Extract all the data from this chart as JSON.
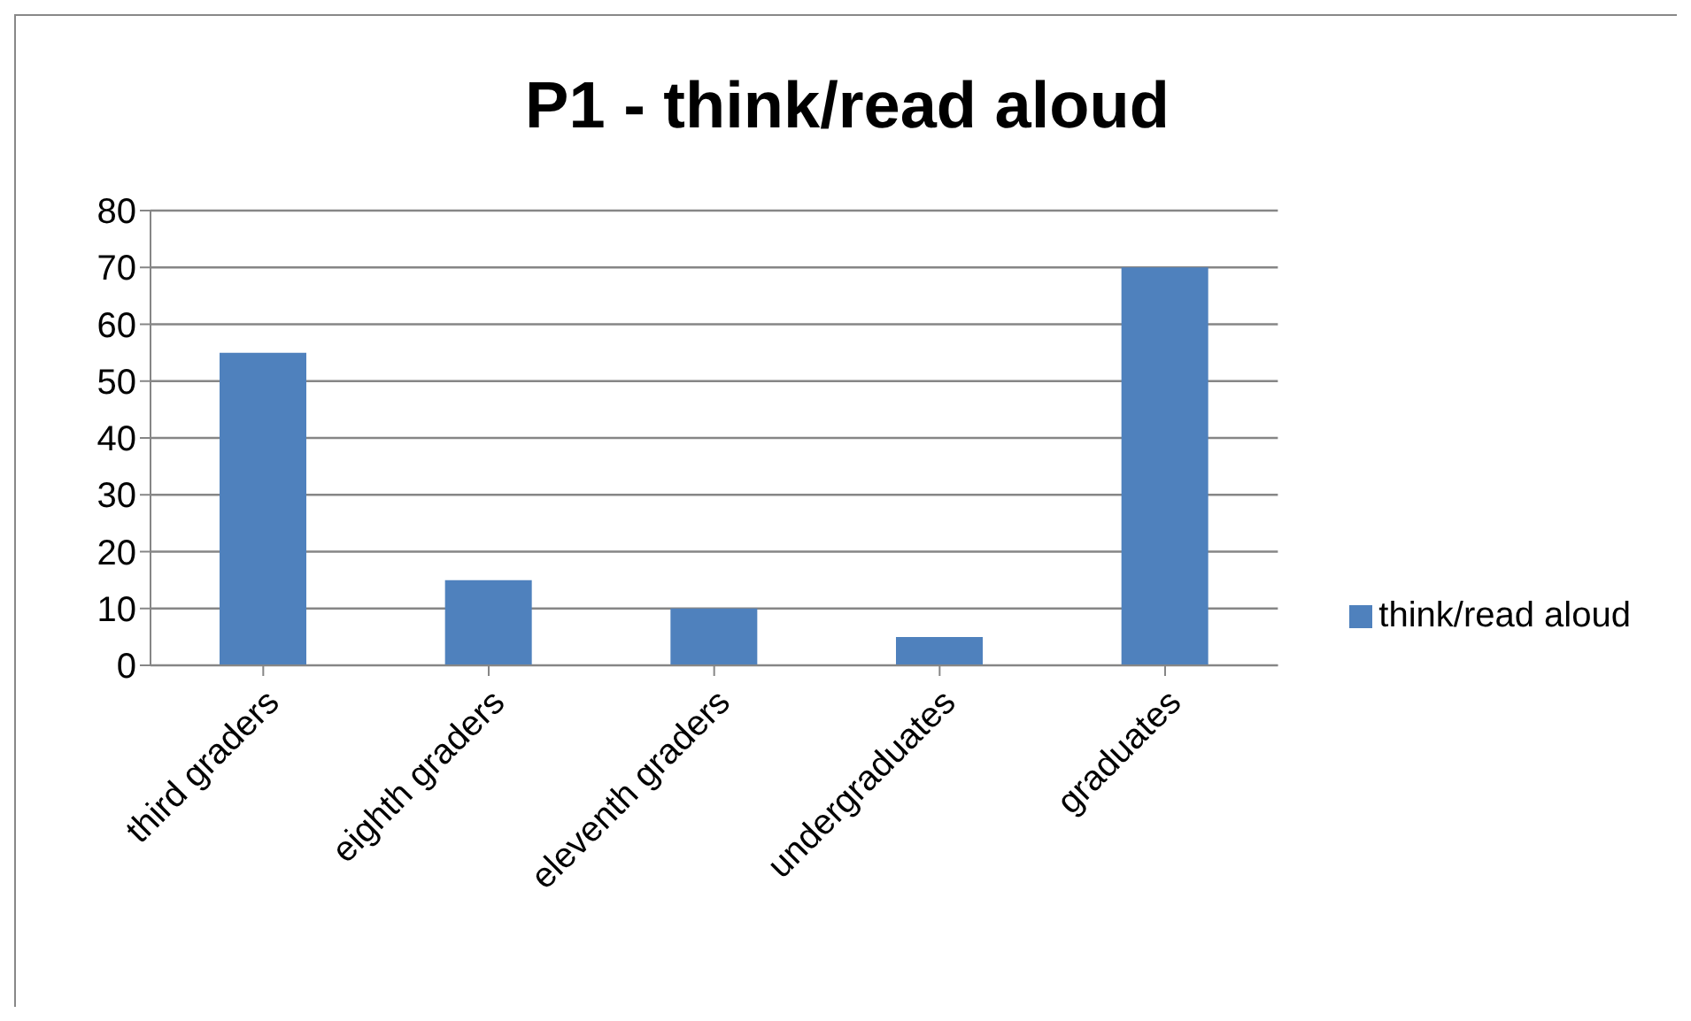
{
  "chart_data": {
    "type": "bar",
    "title": "P1 - think/read aloud",
    "categories": [
      "third graders",
      "eighth graders",
      "eleventh graders",
      "undergraduates",
      "graduates"
    ],
    "series": [
      {
        "name": "think/read aloud",
        "color": "#4f81bd",
        "values": [
          55,
          15,
          10,
          5,
          70
        ]
      }
    ],
    "ylim": [
      0,
      80
    ],
    "yticks": [
      0,
      10,
      20,
      30,
      40,
      50,
      60,
      70,
      80
    ],
    "grid": "y",
    "legend": "right"
  }
}
